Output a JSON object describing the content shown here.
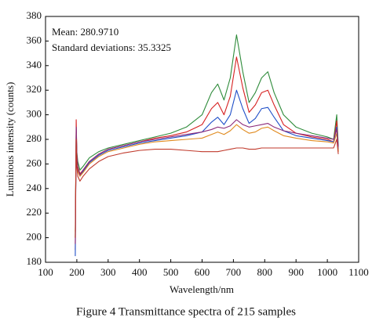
{
  "chart_data": {
    "type": "line",
    "x_label": "Wavelength/nm",
    "y_label": "Luminous intensity (counts)",
    "caption": "Figure 4    Transmittance spectra of 215 samples",
    "annotations": [
      "Mean: 280.9710",
      "Standard deviations: 35.3325"
    ],
    "x": [
      195,
      198,
      200,
      203,
      210,
      220,
      240,
      270,
      300,
      350,
      400,
      450,
      500,
      550,
      600,
      630,
      650,
      670,
      690,
      710,
      730,
      750,
      770,
      790,
      810,
      830,
      860,
      900,
      950,
      1000,
      1020,
      1030,
      1035
    ],
    "series": [
      {
        "color": "#2e8b3a",
        "values": [
          200,
          290,
          270,
          262,
          255,
          258,
          265,
          270,
          273,
          276,
          279,
          282,
          285,
          290,
          300,
          318,
          325,
          312,
          330,
          365,
          335,
          310,
          318,
          330,
          335,
          318,
          300,
          290,
          285,
          282,
          280,
          300,
          275
        ]
      },
      {
        "color": "#d62020",
        "values": [
          190,
          296,
          268,
          258,
          252,
          255,
          262,
          268,
          272,
          275,
          278,
          281,
          283,
          286,
          292,
          305,
          310,
          300,
          315,
          347,
          322,
          302,
          308,
          318,
          320,
          308,
          292,
          285,
          282,
          280,
          278,
          295,
          270
        ]
      },
      {
        "color": "#1f4fc8",
        "values": [
          185,
          288,
          266,
          256,
          250,
          254,
          261,
          267,
          271,
          274,
          277,
          279,
          281,
          283,
          286,
          294,
          298,
          292,
          300,
          320,
          305,
          293,
          297,
          305,
          306,
          298,
          287,
          283,
          281,
          279,
          278,
          290,
          272
        ]
      },
      {
        "color": "#e08a1e",
        "values": [
          205,
          285,
          264,
          254,
          250,
          253,
          260,
          266,
          270,
          273,
          276,
          278,
          279,
          280,
          281,
          284,
          286,
          284,
          287,
          292,
          288,
          285,
          286,
          289,
          290,
          287,
          283,
          281,
          279,
          278,
          277,
          285,
          270
        ]
      },
      {
        "color": "#8b2a7a",
        "values": [
          195,
          290,
          267,
          257,
          251,
          255,
          262,
          268,
          272,
          275,
          278,
          280,
          282,
          284,
          286,
          288,
          290,
          289,
          291,
          296,
          292,
          290,
          291,
          292,
          293,
          290,
          287,
          285,
          283,
          281,
          280,
          288,
          274
        ]
      },
      {
        "color": "#c0392b",
        "values": [
          200,
          280,
          258,
          250,
          246,
          250,
          256,
          262,
          266,
          269,
          271,
          272,
          272,
          271,
          270,
          270,
          270,
          271,
          272,
          273,
          273,
          272,
          272,
          273,
          273,
          273,
          273,
          273,
          273,
          273,
          273,
          280,
          268
        ]
      }
    ],
    "xlim": [
      100,
      1100
    ],
    "ylim": [
      180,
      380
    ],
    "xticks": [
      100,
      200,
      300,
      400,
      500,
      600,
      700,
      800,
      900,
      1000,
      1100
    ],
    "yticks": [
      180,
      200,
      220,
      240,
      260,
      280,
      300,
      320,
      340,
      360,
      380
    ],
    "grid": false
  }
}
